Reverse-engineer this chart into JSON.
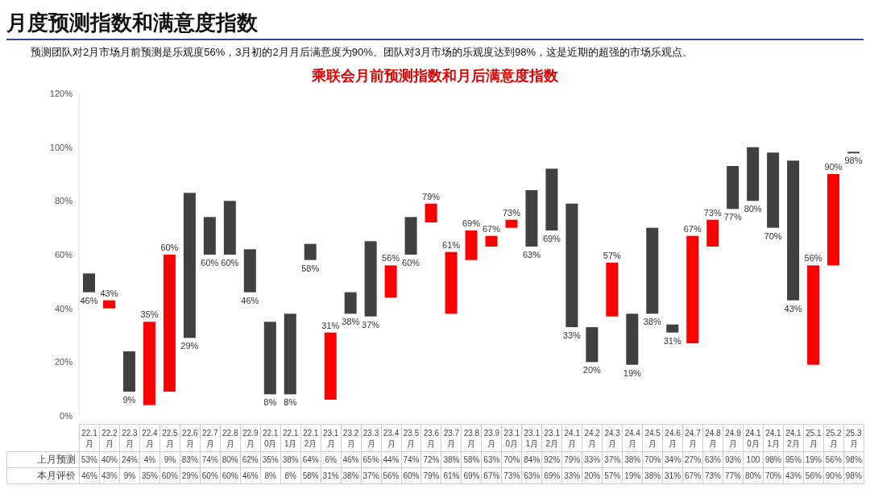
{
  "chart_data": {
    "type": "candlestick",
    "title": "月度预测指数和满意度指数",
    "subtitle": "乘联会月前预测指数和月后满意度指数",
    "annotations": [
      "预测团队对2月市场月前预测是乐观度56%，3月初的2月月后满意度为90%。团队对3月市场的乐观度达到98%，这是近期的超强的市场乐观点。"
    ],
    "categories": [
      "22.1月",
      "22.2月",
      "22.3月",
      "22.4月",
      "22.5月",
      "22.6月",
      "22.7月",
      "22.8月",
      "22.9月",
      "22.10月",
      "22.11月",
      "22.12月",
      "23.1月",
      "23.2月",
      "23.3月",
      "23.4月",
      "23.5月",
      "23.6月",
      "23.7月",
      "23.8月",
      "23.9月",
      "23.10月",
      "23.11月",
      "23.12月",
      "24.1月",
      "24.2月",
      "24.3月",
      "24.4月",
      "24.5月",
      "24.6月",
      "24.7月",
      "24.8月",
      "24.9月",
      "24.10月",
      "24.11月",
      "24.12月",
      "25.1月",
      "25.2月",
      "25.3月"
    ],
    "ohlc": [
      [
        53,
        53,
        46,
        46
      ],
      [
        40,
        43,
        40,
        43
      ],
      [
        24,
        24,
        9,
        9
      ],
      [
        4,
        35,
        4,
        35
      ],
      [
        9,
        60,
        9,
        60
      ],
      [
        83,
        83,
        29,
        29
      ],
      [
        74,
        74,
        60,
        60
      ],
      [
        80,
        80,
        60,
        60
      ],
      [
        62,
        62,
        46,
        46
      ],
      [
        35,
        35,
        8,
        8
      ],
      [
        38,
        38,
        8,
        8
      ],
      [
        64,
        64,
        58,
        58
      ],
      [
        6,
        31,
        6,
        31
      ],
      [
        46,
        46,
        38,
        38
      ],
      [
        65,
        65,
        37,
        37
      ],
      [
        44,
        56,
        44,
        56
      ],
      [
        74,
        74,
        60,
        60
      ],
      [
        72,
        79,
        72,
        79
      ],
      [
        38,
        61,
        38,
        61
      ],
      [
        58,
        69,
        58,
        69
      ],
      [
        63,
        67,
        63,
        67
      ],
      [
        70,
        73,
        70,
        73
      ],
      [
        84,
        84,
        63,
        63
      ],
      [
        92,
        92,
        69,
        69
      ],
      [
        79,
        79,
        33,
        33
      ],
      [
        33,
        33,
        20,
        20
      ],
      [
        37,
        57,
        37,
        57
      ],
      [
        38,
        38,
        19,
        19
      ],
      [
        70,
        70,
        38,
        38
      ],
      [
        34,
        34,
        31,
        31
      ],
      [
        27,
        67,
        27,
        67
      ],
      [
        63,
        73,
        63,
        73
      ],
      [
        93,
        93,
        77,
        77
      ],
      [
        100,
        100,
        80,
        80
      ],
      [
        98,
        98,
        70,
        70
      ],
      [
        95,
        95,
        43,
        43
      ],
      [
        19,
        56,
        19,
        56
      ],
      [
        56,
        90,
        56,
        90
      ],
      [
        98,
        98,
        98,
        98
      ]
    ],
    "colors": [
      "#404040",
      "#ff0000",
      "#404040",
      "#ff0000",
      "#ff0000",
      "#404040",
      "#404040",
      "#404040",
      "#404040",
      "#404040",
      "#404040",
      "#404040",
      "#ff0000",
      "#404040",
      "#404040",
      "#ff0000",
      "#404040",
      "#ff0000",
      "#ff0000",
      "#ff0000",
      "#ff0000",
      "#ff0000",
      "#404040",
      "#404040",
      "#404040",
      "#404040",
      "#ff0000",
      "#404040",
      "#404040",
      "#404040",
      "#ff0000",
      "#ff0000",
      "#404040",
      "#404040",
      "#404040",
      "#404040",
      "#ff0000",
      "#ff0000",
      "#404040"
    ],
    "value_labels": [
      "46%",
      "43%",
      "9%",
      "35%",
      "60%",
      "29%",
      "60%",
      "60%",
      "46%",
      "8%",
      "8%",
      "58%",
      "31%",
      "38%",
      "37%",
      "56%",
      "60%",
      "79%",
      "61%",
      "69%",
      "67%",
      "73%",
      "63%",
      "69%",
      "33%",
      "20%",
      "57%",
      "19%",
      "38%",
      "31%",
      "67%",
      "73%",
      "77%",
      "80%",
      "70%",
      "43%",
      "56%",
      "90%",
      "98%"
    ],
    "y_categories": [
      "上月预测",
      "本月评价"
    ],
    "cell_labels": [
      [
        "53%",
        "40%",
        "24%",
        "4%",
        "9%",
        "83%",
        "74%",
        "80%",
        "62%",
        "35%",
        "38%",
        "64%",
        "6%",
        "46%",
        "65%",
        "44%",
        "74%",
        "72%",
        "38%",
        "58%",
        "63%",
        "70%",
        "84%",
        "92%",
        "79%",
        "33%",
        "37%",
        "38%",
        "70%",
        "34%",
        "27%",
        "63%",
        "93%",
        "100",
        "98%",
        "95%",
        "19%",
        "56%",
        "98%"
      ],
      [
        "46%",
        "43%",
        "9%",
        "35%",
        "60%",
        "29%",
        "60%",
        "60%",
        "46%",
        "8%",
        "8%",
        "58%",
        "31%",
        "38%",
        "37%",
        "56%",
        "60%",
        "79%",
        "61%",
        "69%",
        "67%",
        "73%",
        "63%",
        "69%",
        "33%",
        "20%",
        "57%",
        "19%",
        "38%",
        "31%",
        "67%",
        "73%",
        "77%",
        "80%",
        "70%",
        "43%",
        "56%",
        "90%",
        "98%"
      ]
    ],
    "ylim": [
      0,
      120
    ],
    "yticks": [
      {
        "value": 0,
        "label": "0%"
      },
      {
        "value": 20,
        "label": "20%"
      },
      {
        "value": 40,
        "label": "40%"
      },
      {
        "value": 60,
        "label": "60%"
      },
      {
        "value": 80,
        "label": "80%"
      },
      {
        "value": 100,
        "label": "100%"
      },
      {
        "value": 120,
        "label": "120%"
      }
    ],
    "grid": false,
    "legend": false
  }
}
